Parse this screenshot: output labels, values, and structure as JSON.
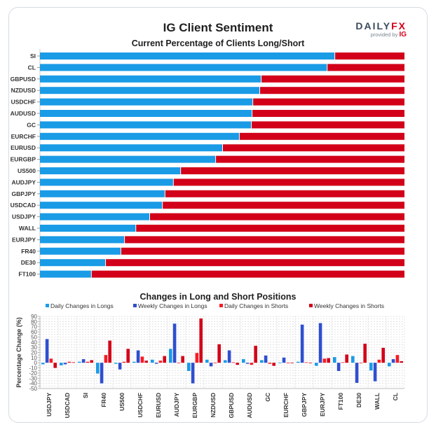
{
  "header": {
    "title": "IG Client Sentiment",
    "logo_main": "DAILY",
    "logo_accent": "FX",
    "logo_provided": "provided by ",
    "logo_ig": "IG"
  },
  "colors": {
    "long": "#1a9be6",
    "short": "#d20019",
    "daily_longs": "#1a9be6",
    "weekly_longs": "#2f4fcf",
    "daily_shorts": "#f51c24",
    "weekly_shorts": "#d20019"
  },
  "chart_data": [
    {
      "type": "bar",
      "orientation": "horizontal-stacked",
      "title": "Current Percentage of Clients Long/Short",
      "categories": [
        "SI",
        "CL",
        "GBPUSD",
        "NZDUSD",
        "USDCHF",
        "AUDUSD",
        "GC",
        "EURCHF",
        "EURUSD",
        "EURGBP",
        "US500",
        "AUDJPY",
        "GBPJPY",
        "USDCAD",
        "USDJPY",
        "WALL",
        "EURJPY",
        "FR40",
        "DE30",
        "FT100"
      ],
      "series": [
        {
          "name": "Long",
          "values": [
            80.8,
            78.7,
            60.6,
            60.2,
            58.3,
            58.1,
            57.9,
            54.6,
            50.0,
            48.1,
            38.5,
            36.5,
            34.2,
            33.5,
            30.0,
            26.2,
            23.1,
            22.1,
            17.9,
            14.0
          ]
        },
        {
          "name": "Short",
          "values": [
            19.2,
            21.3,
            39.4,
            39.8,
            41.7,
            41.9,
            42.1,
            45.4,
            50.0,
            51.9,
            61.5,
            63.5,
            65.8,
            66.5,
            70.0,
            73.8,
            76.9,
            77.9,
            82.1,
            86.0
          ]
        }
      ],
      "xlim": [
        0,
        100
      ]
    },
    {
      "type": "bar",
      "title": "Changes in Long and Short Positions",
      "ylabel": "Percentage Change (%)",
      "xlabel": "",
      "ylim": [
        -50,
        90
      ],
      "yticks": [
        90,
        80,
        70,
        60,
        50,
        40,
        30,
        20,
        10,
        0,
        -10,
        -20,
        -30,
        -40,
        -50
      ],
      "grid": true,
      "legend": "top",
      "categories": [
        "USDJPY",
        "USDCAD",
        "SI",
        "FR40",
        "US500",
        "USDCHF",
        "EURUSD",
        "AUDJPY",
        "EURGBP",
        "NZDUSD",
        "GBPUSD",
        "AUDUSD",
        "GC",
        "EURCHF",
        "GBPJPY",
        "EURJPY",
        "FT100",
        "DE30",
        "WALL",
        "CL"
      ],
      "series": [
        {
          "name": "Daily Changes in Longs",
          "values": [
            -3,
            -5,
            2,
            -21,
            -2,
            2,
            6,
            27,
            -16,
            6,
            5,
            7,
            5,
            0,
            2,
            -6,
            11,
            13,
            -15,
            -7
          ]
        },
        {
          "name": "Weekly Changes in Longs",
          "values": [
            46,
            -3,
            7,
            -40,
            -13,
            24,
            -2,
            76,
            -40,
            -7,
            24,
            -2,
            14,
            10,
            74,
            77,
            -16,
            -39,
            -36,
            7
          ]
        },
        {
          "name": "Daily Changes in Shorts",
          "values": [
            8,
            2,
            2,
            15,
            2,
            12,
            4,
            0,
            19,
            0,
            1,
            -4,
            -2,
            -1,
            1,
            8,
            1,
            0,
            6,
            15
          ]
        },
        {
          "name": "Weekly Changes in Shorts",
          "values": [
            -10,
            1,
            5,
            43,
            27,
            4,
            13,
            13,
            86,
            36,
            -4,
            33,
            -6,
            -1,
            -1,
            9,
            16,
            37,
            29,
            3
          ]
        }
      ]
    }
  ]
}
